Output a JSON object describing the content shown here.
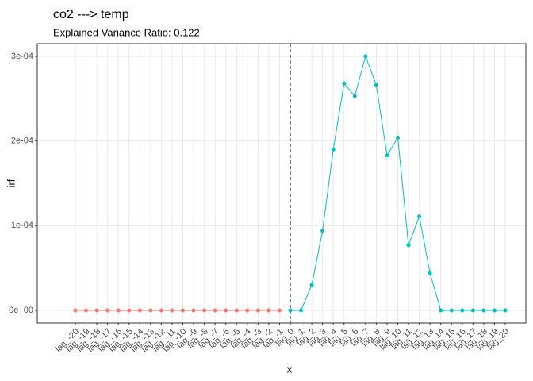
{
  "chart_data": {
    "type": "line",
    "title": "co2 ---> temp",
    "subtitle": "Explained Variance Ratio: 0.122",
    "x_label": "x",
    "y_label": "irf",
    "categories": [
      "lag_-20",
      "lag_-19",
      "lag_-18",
      "lag_-17",
      "lag_-16",
      "lag_-15",
      "lag_-14",
      "lag_-13",
      "lag_-12",
      "lag_-11",
      "lag_-10",
      "lag_-9",
      "lag_-8",
      "lag_-7",
      "lag_-6",
      "lag_-5",
      "lag_-4",
      "lag_-3",
      "lag_-2",
      "lag_-1",
      "lag_0",
      "lag_1",
      "lag_2",
      "lag_3",
      "lag_4",
      "lag_5",
      "lag_6",
      "lag_7",
      "lag_8",
      "lag_9",
      "lag_10",
      "lag_11",
      "lag_12",
      "lag_13",
      "lag_14",
      "lag_15",
      "lag_16",
      "lag_17",
      "lag_18",
      "lag_19",
      "lag_20"
    ],
    "series": [
      {
        "color": "#F8766D",
        "values": [
          0,
          0,
          0,
          0,
          0,
          0,
          0,
          0,
          0,
          0,
          0,
          0,
          0,
          0,
          0,
          0,
          0,
          0,
          0,
          0,
          null,
          null,
          null,
          null,
          null,
          null,
          null,
          null,
          null,
          null,
          null,
          null,
          null,
          null,
          null,
          null,
          null,
          null,
          null,
          null,
          null
        ]
      },
      {
        "color": "#00BFC4",
        "values": [
          null,
          null,
          null,
          null,
          null,
          null,
          null,
          null,
          null,
          null,
          null,
          null,
          null,
          null,
          null,
          null,
          null,
          null,
          null,
          null,
          0,
          0,
          3e-05,
          9.4e-05,
          0.00019,
          0.000268,
          0.000253,
          0.0003,
          0.000266,
          0.000183,
          0.000204,
          7.7e-05,
          0.000111,
          4.4e-05,
          0,
          0,
          0,
          0,
          0,
          0,
          0
        ]
      }
    ],
    "vline": "lag_0",
    "ylim": [
      -1.5e-05,
      0.000315
    ],
    "yticks": [
      {
        "value": 0,
        "label": "0e+00"
      },
      {
        "value": 0.0001,
        "label": "1e-04"
      },
      {
        "value": 0.0002,
        "label": "2e-04"
      },
      {
        "value": 0.0003,
        "label": "3e-04"
      }
    ],
    "grid": true
  }
}
